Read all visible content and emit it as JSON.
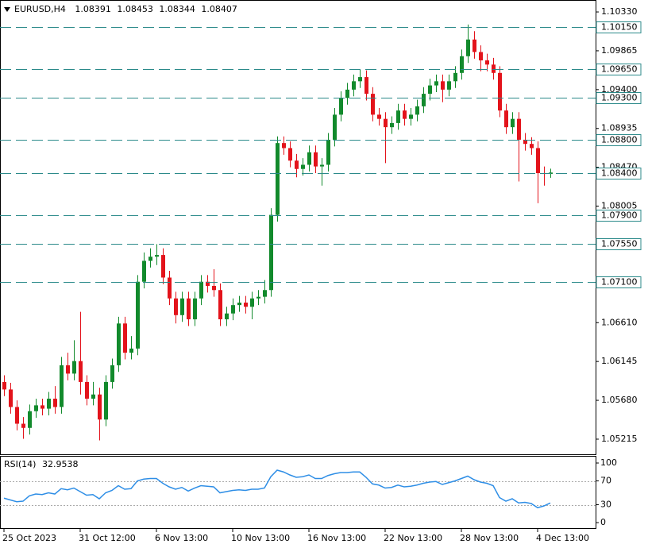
{
  "chart_data": [
    {
      "type": "candlestick",
      "title": "EURUSD,H4",
      "categories": [
        "25 Oct 2023",
        null,
        null,
        null,
        null,
        null,
        null,
        null,
        null,
        null,
        null,
        null,
        "31 Oct 12:00",
        null,
        null,
        null,
        null,
        null,
        null,
        null,
        null,
        null,
        null,
        null,
        "6 Nov 13:00",
        null,
        null,
        null,
        null,
        null,
        null,
        null,
        null,
        null,
        null,
        null,
        "10 Nov 13:00",
        null,
        null,
        null,
        null,
        null,
        null,
        null,
        null,
        null,
        null,
        null,
        "16 Nov 13:00",
        null,
        null,
        null,
        null,
        null,
        null,
        null,
        null,
        null,
        null,
        null,
        "22 Nov 13:00",
        null,
        null,
        null,
        null,
        null,
        null,
        null,
        null,
        null,
        null,
        null,
        "28 Nov 13:00",
        null,
        null,
        null,
        null,
        null,
        null,
        null,
        null,
        null,
        null,
        null,
        "4 Dec 13:00",
        null,
        null
      ],
      "open": [
        1.059,
        1.0581,
        1.056,
        1.054,
        1.0535,
        1.0555,
        1.0562,
        1.0558,
        1.057,
        1.056,
        1.061,
        1.06,
        1.0615,
        1.059,
        1.057,
        1.0575,
        1.0545,
        1.059,
        1.061,
        1.066,
        1.0625,
        1.063,
        1.071,
        1.0735,
        1.074,
        1.0742,
        1.0715,
        1.069,
        1.067,
        1.069,
        1.0665,
        1.069,
        1.071,
        1.0705,
        1.07,
        1.0665,
        1.0672,
        1.0682,
        1.0685,
        1.068,
        1.069,
        1.0692,
        1.07,
        1.079,
        1.0876,
        1.087,
        1.0855,
        1.0845,
        1.085,
        1.0865,
        1.0848,
        1.085,
        1.088,
        1.091,
        1.093,
        1.094,
        1.095,
        1.0955,
        1.0935,
        1.091,
        1.0905,
        1.0895,
        1.09,
        1.0915,
        1.0905,
        1.091,
        1.092,
        1.0935,
        1.0945,
        1.095,
        1.094,
        1.095,
        1.096,
        1.098,
        1.1,
        1.0985,
        1.0975,
        1.097,
        1.096,
        1.0915,
        1.0895,
        1.0905,
        1.088,
        1.0875,
        1.087,
        1.084,
        1.08391
      ],
      "high": [
        1.0598,
        1.0589,
        1.0568,
        1.0548,
        1.0563,
        1.057,
        1.057,
        1.0578,
        1.0585,
        1.062,
        1.0625,
        1.064,
        1.0674,
        1.0598,
        1.059,
        1.0583,
        1.0598,
        1.0618,
        1.0668,
        1.0668,
        1.0645,
        1.0718,
        1.0745,
        1.075,
        1.0755,
        1.075,
        1.0723,
        1.0698,
        1.0698,
        1.0698,
        1.0698,
        1.0718,
        1.0718,
        1.0725,
        1.0708,
        1.068,
        1.069,
        1.0693,
        1.0693,
        1.0698,
        1.07,
        1.0712,
        1.0798,
        1.0884,
        1.0884,
        1.0878,
        1.0863,
        1.0858,
        1.0873,
        1.0873,
        1.0858,
        1.0888,
        1.0918,
        1.0938,
        1.0948,
        1.0958,
        1.0964,
        1.0963,
        1.0943,
        1.0918,
        1.0913,
        1.0908,
        1.0923,
        1.0923,
        1.0918,
        1.0928,
        1.0943,
        1.0953,
        1.0958,
        1.0958,
        1.0958,
        1.0968,
        1.0988,
        1.1018,
        1.101,
        1.0993,
        1.0983,
        1.0978,
        1.0968,
        1.0923,
        1.0913,
        1.0913,
        1.0888,
        1.0883,
        1.0878,
        1.0848,
        1.08453
      ],
      "low": [
        1.0573,
        1.0552,
        1.0532,
        1.0522,
        1.0527,
        1.0547,
        1.055,
        1.055,
        1.0552,
        1.0552,
        1.0592,
        1.0592,
        1.0575,
        1.0562,
        1.0562,
        1.052,
        1.0537,
        1.0582,
        1.0602,
        1.0617,
        1.0617,
        1.0622,
        1.0702,
        1.0727,
        1.073,
        1.0707,
        1.0682,
        1.066,
        1.0662,
        1.0657,
        1.0657,
        1.0682,
        1.0697,
        1.0692,
        1.0657,
        1.0657,
        1.0664,
        1.0674,
        1.0672,
        1.0665,
        1.0682,
        1.0684,
        1.0692,
        1.0782,
        1.0862,
        1.0847,
        1.0835,
        1.0837,
        1.0842,
        1.084,
        1.0825,
        1.0842,
        1.0872,
        1.0902,
        1.0922,
        1.0932,
        1.0942,
        1.0927,
        1.0902,
        1.0897,
        1.0852,
        1.0887,
        1.0892,
        1.0897,
        1.0897,
        1.0902,
        1.0912,
        1.0927,
        1.0937,
        1.0925,
        1.0932,
        1.0942,
        1.0952,
        1.0972,
        1.0977,
        1.0962,
        1.0962,
        1.0952,
        1.0907,
        1.0887,
        1.0887,
        1.083,
        1.0867,
        1.0862,
        1.0804,
        1.0825,
        1.08344
      ],
      "close": [
        1.0581,
        1.056,
        1.054,
        1.0535,
        1.0555,
        1.0562,
        1.0558,
        1.057,
        1.056,
        1.061,
        1.06,
        1.0615,
        1.059,
        1.057,
        1.0575,
        1.0545,
        1.059,
        1.061,
        1.066,
        1.0625,
        1.063,
        1.071,
        1.0735,
        1.074,
        1.0742,
        1.0715,
        1.069,
        1.067,
        1.069,
        1.0665,
        1.069,
        1.071,
        1.0705,
        1.07,
        1.0665,
        1.0672,
        1.0682,
        1.0685,
        1.068,
        1.069,
        1.0692,
        1.07,
        1.079,
        1.0876,
        1.087,
        1.0855,
        1.0845,
        1.085,
        1.0865,
        1.0848,
        1.085,
        1.088,
        1.091,
        1.093,
        1.094,
        1.095,
        1.0955,
        1.0935,
        1.091,
        1.0905,
        1.0895,
        1.09,
        1.0915,
        1.0905,
        1.091,
        1.092,
        1.0935,
        1.0945,
        1.095,
        1.094,
        1.095,
        1.096,
        1.098,
        1.1,
        1.0985,
        1.0975,
        1.097,
        1.096,
        1.0915,
        1.0895,
        1.0905,
        1.088,
        1.0875,
        1.087,
        1.084,
        1.0839,
        1.08407
      ],
      "up_color": "#128a2c",
      "down_color": "#e3131b",
      "ylim": [
        1.05034,
        1.10473
      ],
      "yticks": [
        {
          "value": 1.1033,
          "label": "1.10330"
        },
        {
          "value": 1.09865,
          "label": "1.09865"
        },
        {
          "value": 1.094,
          "label": "1.09400"
        },
        {
          "value": 1.08935,
          "label": "1.08935"
        },
        {
          "value": 1.0847,
          "label": "1.08470"
        },
        {
          "value": 1.08005,
          "label": "1.08005"
        },
        {
          "value": 1.0661,
          "label": "1.06610"
        },
        {
          "value": 1.06145,
          "label": "1.06145"
        },
        {
          "value": 1.0568,
          "label": "1.05680"
        },
        {
          "value": 1.05215,
          "label": "1.05215"
        }
      ],
      "hlines": [
        {
          "value": 1.1015,
          "label": "1.10150"
        },
        {
          "value": 1.0965,
          "label": "1.09650"
        },
        {
          "value": 1.093,
          "label": "1.09300"
        },
        {
          "value": 1.088,
          "label": "1.08800"
        },
        {
          "value": 1.084,
          "label": "1.08400"
        },
        {
          "value": 1.079,
          "label": "1.07900"
        },
        {
          "value": 1.0755,
          "label": "1.07550"
        },
        {
          "value": 1.071,
          "label": "1.07100"
        }
      ],
      "hline_color": "#2b8a8a"
    },
    {
      "type": "line",
      "title": "RSI(14)",
      "color": "#2e8ee6",
      "values": [
        41,
        38,
        35,
        36,
        45,
        48,
        47,
        50,
        48,
        57,
        55,
        58,
        52,
        46,
        47,
        40,
        50,
        54,
        62,
        56,
        57,
        70,
        73,
        74,
        74,
        66,
        60,
        56,
        59,
        53,
        58,
        62,
        61,
        60,
        50,
        52,
        54,
        55,
        54,
        56,
        56,
        58,
        77,
        88,
        85,
        80,
        76,
        77,
        80,
        74,
        74,
        79,
        82,
        84,
        84,
        85,
        85,
        76,
        65,
        63,
        58,
        59,
        63,
        60,
        61,
        63,
        66,
        68,
        69,
        64,
        67,
        70,
        74,
        78,
        72,
        68,
        66,
        62,
        42,
        36,
        40,
        33,
        34,
        32,
        25,
        28,
        32.9538
      ],
      "ylim": [
        -9.3,
        112
      ],
      "yticks": [
        100,
        70,
        30,
        0
      ],
      "levels": [
        70,
        30
      ]
    }
  ]
}
